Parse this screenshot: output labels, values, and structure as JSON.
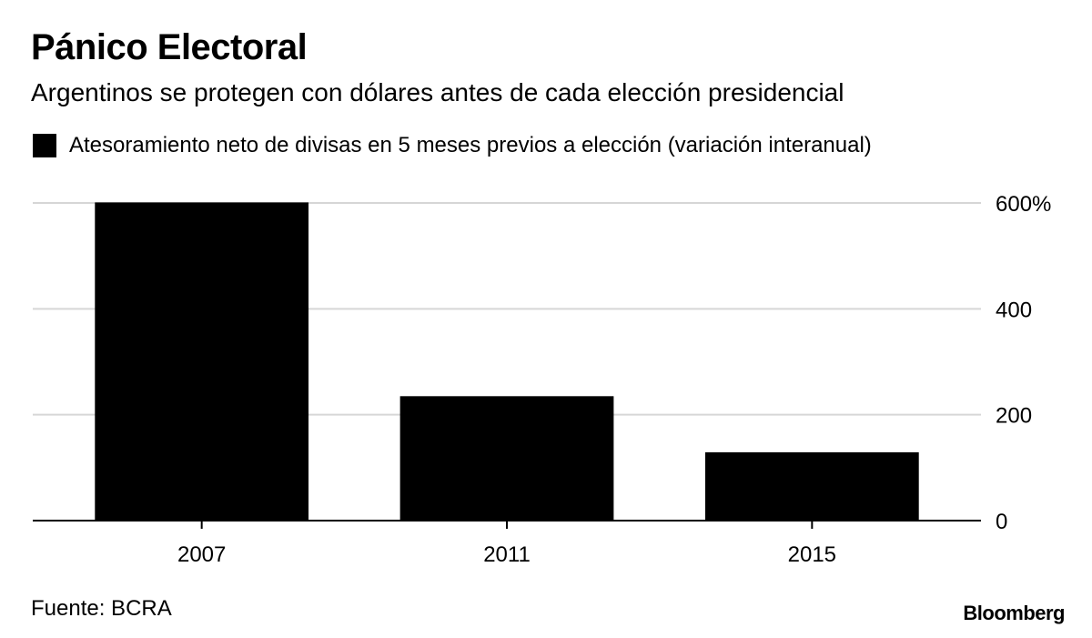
{
  "header": {
    "title": "Pánico Electoral",
    "subtitle": "Argentinos se protegen con dólares antes de cada elección presidencial"
  },
  "legend": {
    "label": "Atesoramiento neto de divisas en 5 meses previos a elección (variación interanual)"
  },
  "footer": {
    "source": "Fuente: BCRA",
    "brand": "Bloomberg"
  },
  "chart_data": {
    "type": "bar",
    "title": "Pánico Electoral",
    "subtitle": "Argentinos se protegen con dólares antes de cada elección presidencial",
    "categories": [
      "2007",
      "2011",
      "2015"
    ],
    "series": [
      {
        "name": "Atesoramiento neto de divisas en 5 meses previos a elección (variación interanual)",
        "values": [
          601,
          235,
          129
        ],
        "color": "#000000"
      }
    ],
    "yticks": [
      0,
      200,
      400,
      600
    ],
    "ytick_labels": [
      "0",
      "200",
      "400",
      "600%"
    ],
    "ylim": [
      0,
      600
    ],
    "y_axis_side": "right",
    "grid": true,
    "legend_position": "top-left",
    "xlabel": "",
    "ylabel": ""
  }
}
